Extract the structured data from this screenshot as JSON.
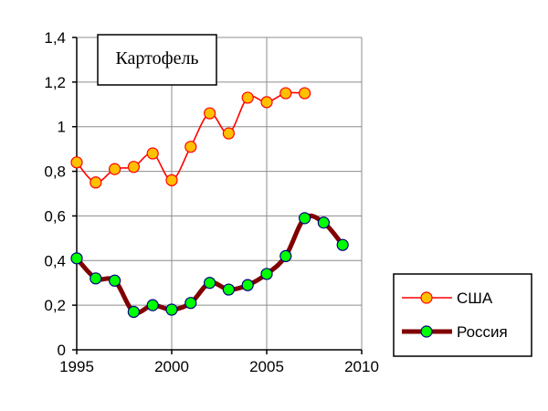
{
  "chart_data": {
    "type": "line",
    "title": "Картофель",
    "xlabel": "",
    "ylabel": "",
    "xlim": [
      1995,
      2010
    ],
    "ylim": [
      0,
      1.4
    ],
    "x_ticks": [
      1995,
      2000,
      2005,
      2010
    ],
    "y_ticks": [
      0,
      0.2,
      0.4,
      0.6,
      0.8,
      1,
      1.2,
      1.4
    ],
    "x_tick_labels": [
      "1995",
      "2000",
      "2005",
      "2010"
    ],
    "y_tick_labels": [
      "0",
      "0,2",
      "0,4",
      "0,6",
      "0,8",
      "1",
      "1,2",
      "1,4"
    ],
    "grid": true,
    "legend_position": "bottom-right",
    "series": [
      {
        "name": "США",
        "color": "#ff0000",
        "marker_fill": "#ffc000",
        "x": [
          1995,
          1996,
          1997,
          1998,
          1999,
          2000,
          2001,
          2002,
          2003,
          2004,
          2005,
          2006,
          2007
        ],
        "values": [
          0.84,
          0.75,
          0.81,
          0.82,
          0.88,
          0.76,
          0.91,
          1.06,
          0.97,
          1.13,
          1.11,
          1.15,
          1.15
        ]
      },
      {
        "name": "Россия",
        "color": "#800000",
        "marker_fill": "#00ff00",
        "x": [
          1995,
          1996,
          1997,
          1998,
          1999,
          2000,
          2001,
          2002,
          2003,
          2004,
          2005,
          2006,
          2007,
          2008,
          2009
        ],
        "values": [
          0.41,
          0.32,
          0.31,
          0.17,
          0.2,
          0.18,
          0.21,
          0.3,
          0.27,
          0.29,
          0.34,
          0.42,
          0.59,
          0.57,
          0.47
        ]
      }
    ]
  }
}
